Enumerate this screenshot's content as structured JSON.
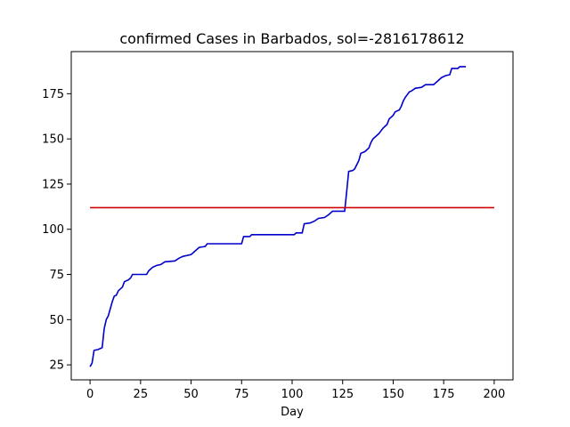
{
  "chart_data": {
    "type": "line",
    "title": "confirmed Cases in Barbados, sol=-2816178612",
    "xlabel": "Day",
    "ylabel": "",
    "xlim": [
      -9.3,
      209.3
    ],
    "ylim": [
      16.7,
      198.3
    ],
    "xticks": [
      0,
      25,
      50,
      75,
      100,
      125,
      150,
      175,
      200
    ],
    "yticks": [
      25,
      50,
      75,
      100,
      125,
      150,
      175
    ],
    "grid": false,
    "series": [
      {
        "color": "#0000cc",
        "points": [
          [
            0,
            24
          ],
          [
            1,
            26
          ],
          [
            2,
            33
          ],
          [
            4,
            33.5
          ],
          [
            6,
            34.5
          ],
          [
            7,
            45
          ],
          [
            8,
            50
          ],
          [
            9,
            52
          ],
          [
            10,
            56
          ],
          [
            11,
            60
          ],
          [
            12,
            63
          ],
          [
            13,
            63.5
          ],
          [
            14,
            66
          ],
          [
            16,
            68
          ],
          [
            17,
            71
          ],
          [
            19,
            72
          ],
          [
            20,
            73
          ],
          [
            21,
            75
          ],
          [
            28,
            75
          ],
          [
            29,
            77
          ],
          [
            31,
            79
          ],
          [
            33,
            80
          ],
          [
            35,
            80.5
          ],
          [
            37,
            82
          ],
          [
            42,
            82.5
          ],
          [
            44,
            84
          ],
          [
            46,
            85
          ],
          [
            50,
            86
          ],
          [
            52,
            88
          ],
          [
            54,
            90
          ],
          [
            57,
            90.5
          ],
          [
            58,
            92
          ],
          [
            75,
            92
          ],
          [
            76,
            96
          ],
          [
            79,
            96
          ],
          [
            80,
            97
          ],
          [
            101,
            97
          ],
          [
            102,
            98
          ],
          [
            105,
            98
          ],
          [
            106,
            103
          ],
          [
            109,
            103.5
          ],
          [
            111,
            104.5
          ],
          [
            113,
            106
          ],
          [
            116,
            106.5
          ],
          [
            118,
            108
          ],
          [
            120,
            110
          ],
          [
            126,
            110
          ],
          [
            127,
            121
          ],
          [
            128,
            132
          ],
          [
            130,
            132.5
          ],
          [
            131,
            133.5
          ],
          [
            133,
            138
          ],
          [
            134,
            142
          ],
          [
            136,
            143
          ],
          [
            138,
            145
          ],
          [
            139,
            148
          ],
          [
            140,
            150
          ],
          [
            142,
            152
          ],
          [
            143,
            153
          ],
          [
            145,
            156
          ],
          [
            147,
            158
          ],
          [
            148,
            161
          ],
          [
            150,
            163
          ],
          [
            151,
            165
          ],
          [
            153,
            166
          ],
          [
            154,
            168
          ],
          [
            155,
            171
          ],
          [
            156,
            173
          ],
          [
            158,
            176
          ],
          [
            159,
            176.5
          ],
          [
            161,
            178
          ],
          [
            164,
            178.5
          ],
          [
            166,
            180
          ],
          [
            170,
            180
          ],
          [
            172,
            182
          ],
          [
            174,
            184
          ],
          [
            176,
            185
          ],
          [
            178,
            185.5
          ],
          [
            179,
            189
          ],
          [
            182,
            189
          ],
          [
            183,
            190
          ],
          [
            186,
            190
          ]
        ]
      },
      {
        "color": "#cc0000",
        "points": [
          [
            0,
            112
          ],
          [
            200,
            112
          ]
        ]
      }
    ]
  }
}
